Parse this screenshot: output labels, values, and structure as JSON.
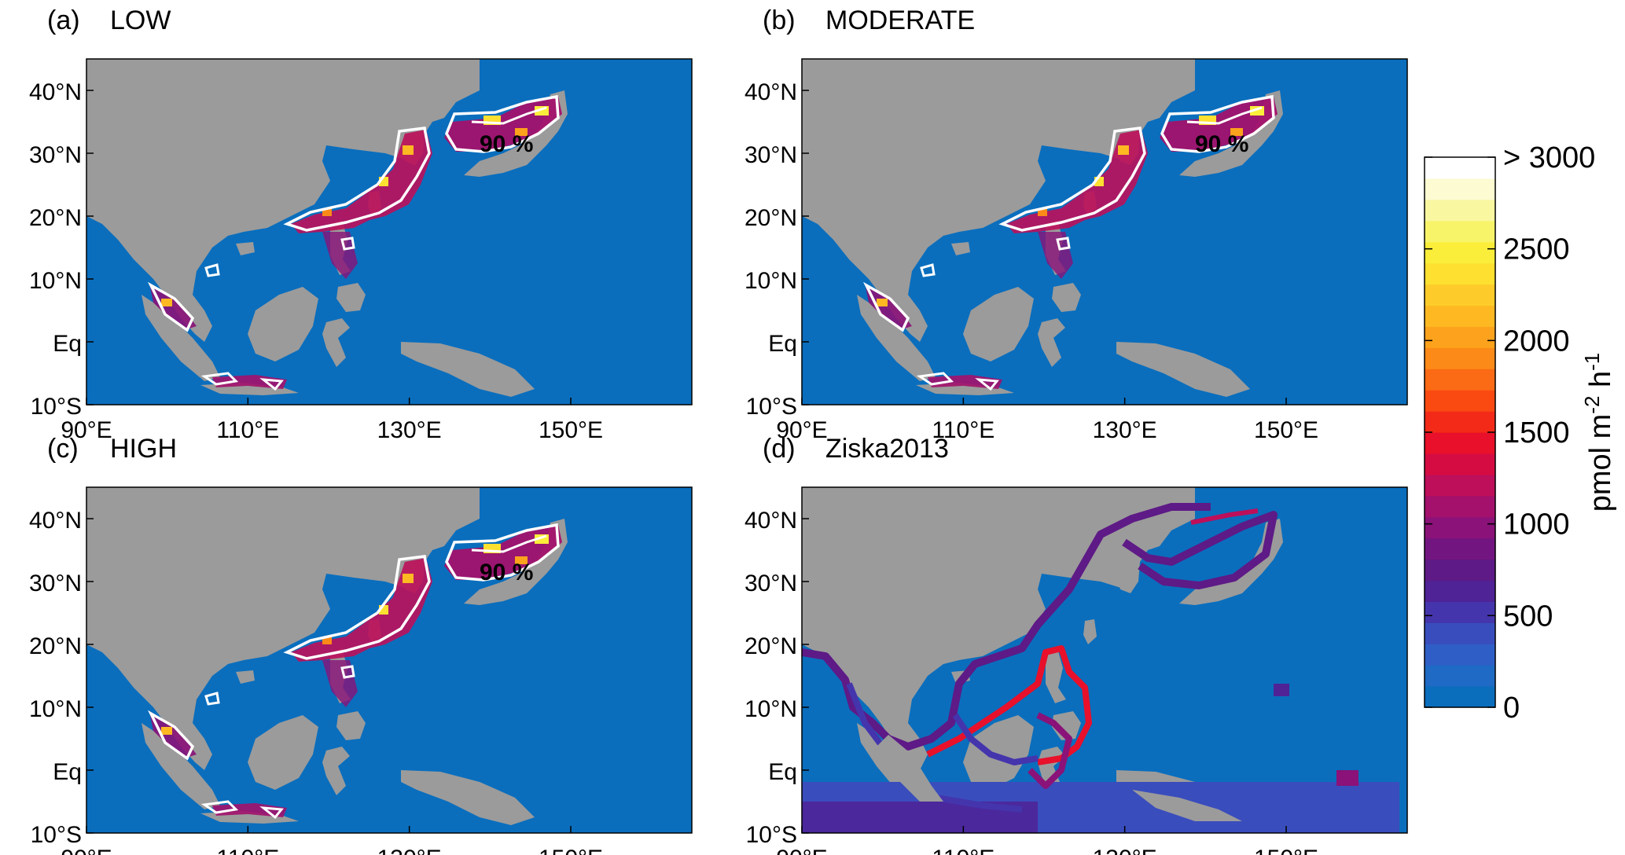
{
  "panels": [
    {
      "tag": "(a)",
      "title": "LOW",
      "contour_label": "90 %"
    },
    {
      "tag": "(b)",
      "title": "MODERATE",
      "contour_label": "90 %"
    },
    {
      "tag": "(c)",
      "title": "HIGH",
      "contour_label": "90 %"
    },
    {
      "tag": "(d)",
      "title": "Ziska2013",
      "contour_label": ""
    }
  ],
  "axes": {
    "lat_ticks": [
      "40°N",
      "30°N",
      "20°N",
      "10°N",
      "Eq",
      "10°S"
    ],
    "lon_ticks": [
      "90°E",
      "110°E",
      "130°E",
      "150°E"
    ],
    "lon_range": [
      90,
      165
    ],
    "lat_range": [
      -10,
      45
    ]
  },
  "colorbar": {
    "label": "pmol m",
    "label_sup1": "-2",
    "label_mid": " h",
    "label_sup2": "-1",
    "ticks": [
      "> 3000",
      "2500",
      "2000",
      "1500",
      "1000",
      "500",
      "0"
    ],
    "range": [
      0,
      3000
    ],
    "colors": [
      "#0a6ebd",
      "#1e6ac4",
      "#2f5fc6",
      "#3a4dbd",
      "#4435ad",
      "#4f2296",
      "#5e1a86",
      "#731580",
      "#8a1278",
      "#a3116c",
      "#bd0f5a",
      "#d50c42",
      "#e8102a",
      "#f42a18",
      "#fa4a12",
      "#fb6a14",
      "#fc8a18",
      "#fda21c",
      "#fdb822",
      "#fdcc2a",
      "#fde030",
      "#fbee3a",
      "#f8f46a",
      "#f9f7a0",
      "#fcfbd2",
      "#ffffff"
    ]
  },
  "colors": {
    "ocean": "#0a6ebd",
    "land": "#9b9b9b",
    "contour": "#ffffff"
  }
}
